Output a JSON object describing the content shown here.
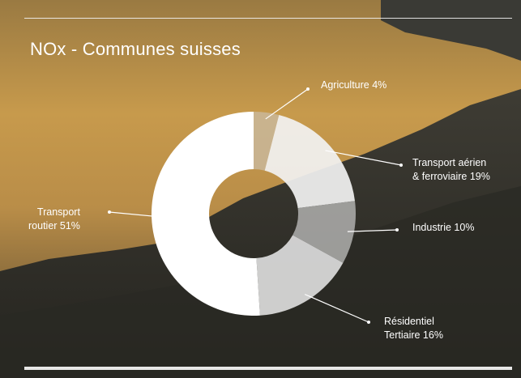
{
  "chart_data": {
    "type": "pie",
    "title": "NOx - Communes suisses",
    "slices": [
      {
        "lines": [
          "Agriculture 4%"
        ],
        "value": 4,
        "color": "#c9b79a",
        "opacity": 0.85
      },
      {
        "lines": [
          "Transport aérien",
          "& ferroviaire 19%"
        ],
        "value": 19,
        "color": "#f2f2f2",
        "opacity": 0.92
      },
      {
        "lines": [
          "Industrie 10%"
        ],
        "value": 10,
        "color": "#a9a8a6",
        "opacity": 0.9
      },
      {
        "lines": [
          "Résidentiel",
          "Tertiaire 16%"
        ],
        "value": 16,
        "color": "#dcdcdc",
        "opacity": 0.92
      },
      {
        "lines": [
          "Transport",
          "routier 51%"
        ],
        "value": 51,
        "color": "#ffffff",
        "opacity": 1
      }
    ]
  },
  "colors": {
    "rule": "#f2f2f2",
    "text": "#ffffff",
    "leader": "#ffffff"
  }
}
